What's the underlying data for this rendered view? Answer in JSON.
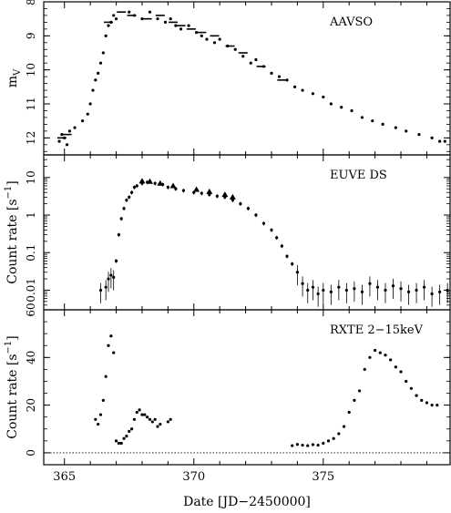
{
  "chart_data": [
    {
      "id": "aavso",
      "type": "scatter",
      "label": "AAVSO",
      "ylabel": "m",
      "ylabel_sub": "V",
      "ylim": [
        8,
        12.5
      ],
      "y_inverted": true,
      "y_ticks": [
        8,
        9,
        10,
        11,
        12
      ],
      "series": [
        {
          "style": "dots",
          "x": [
            364.8,
            364.9,
            365.0,
            365.1,
            365.2,
            365.4,
            365.7,
            365.9,
            366.0,
            366.1,
            366.2,
            366.3,
            366.4,
            366.5,
            366.6,
            366.7,
            366.8,
            366.9,
            367.0,
            367.5,
            367.7,
            368.0,
            368.3,
            368.6,
            368.9,
            369.1,
            369.3,
            369.5,
            369.8,
            370.1,
            370.3,
            370.5,
            370.8,
            371.0,
            371.3,
            371.6,
            371.9,
            372.2,
            372.4,
            372.7,
            373.0,
            373.3,
            373.6,
            373.9,
            374.2,
            374.6,
            375.0,
            375.3,
            375.7,
            376.1,
            376.5,
            376.9,
            377.3,
            377.8,
            378.2,
            378.7,
            379.2,
            379.5,
            379.7
          ],
          "y": [
            12.1,
            11.9,
            12.0,
            12.2,
            11.8,
            11.7,
            11.5,
            11.3,
            11.0,
            10.6,
            10.3,
            10.1,
            9.8,
            9.5,
            9.0,
            8.7,
            8.6,
            8.4,
            8.5,
            8.3,
            8.4,
            8.5,
            8.3,
            8.5,
            8.6,
            8.5,
            8.7,
            8.8,
            8.7,
            8.9,
            9.0,
            9.1,
            9.2,
            9.1,
            9.3,
            9.4,
            9.6,
            9.8,
            9.7,
            9.9,
            10.1,
            10.2,
            10.3,
            10.5,
            10.6,
            10.7,
            10.8,
            11.0,
            11.1,
            11.2,
            11.4,
            11.5,
            11.6,
            11.7,
            11.8,
            11.9,
            12.0,
            12.1,
            12.1
          ]
        },
        {
          "style": "horizontal-bars",
          "x": [
            364.9,
            365.1,
            366.7,
            367.2,
            367.6,
            368.2,
            368.7,
            369.2,
            369.5,
            369.9,
            370.3,
            370.8,
            371.4,
            371.9,
            372.6,
            373.4
          ],
          "y": [
            12.0,
            11.9,
            8.6,
            8.3,
            8.4,
            8.5,
            8.4,
            8.6,
            8.7,
            8.8,
            8.9,
            9.0,
            9.3,
            9.5,
            9.9,
            10.3
          ]
        }
      ]
    },
    {
      "id": "euve",
      "type": "scatter",
      "label": "EUVE DS",
      "ylabel": "Count rate [s",
      "ylabel_sup": "−1",
      "ylabel_end": "]",
      "y_scale": "log",
      "ylim": [
        0.003,
        40
      ],
      "y_tick_labels": [
        "10",
        "1",
        "0.1",
        "0.01"
      ],
      "y_tick_values": [
        10,
        1,
        0.1,
        0.01
      ],
      "series": [
        {
          "style": "errorbars",
          "x": [
            366.4,
            366.6,
            366.7,
            366.8,
            366.9,
            367.0,
            367.1,
            367.2,
            367.3,
            367.4,
            367.5,
            367.6,
            367.7,
            367.8,
            368.0,
            368.2,
            368.5,
            368.8,
            369.0,
            369.3,
            369.6,
            370.0,
            370.3,
            370.6,
            370.9,
            371.2,
            371.5,
            371.8,
            372.1,
            372.4,
            372.7,
            373.0,
            373.2,
            373.4,
            373.6,
            373.8,
            374.0,
            374.2,
            374.4,
            374.6,
            374.8,
            375.0,
            375.3,
            375.6,
            375.9,
            376.2,
            376.5,
            376.8,
            377.1,
            377.4,
            377.7,
            378.0,
            378.3,
            378.6,
            378.9,
            379.2,
            379.5,
            379.8
          ],
          "y": [
            0.01,
            0.012,
            0.02,
            0.025,
            0.022,
            0.06,
            0.3,
            0.8,
            1.5,
            2.5,
            3.0,
            4.0,
            5.5,
            6.0,
            7.0,
            7.5,
            7.0,
            6.5,
            5.5,
            5.0,
            4.5,
            4.0,
            3.8,
            3.5,
            3.2,
            3.0,
            2.5,
            2.0,
            1.5,
            1.0,
            0.6,
            0.4,
            0.25,
            0.15,
            0.08,
            0.05,
            0.03,
            0.015,
            0.01,
            0.012,
            0.008,
            0.01,
            0.009,
            0.012,
            0.01,
            0.011,
            0.009,
            0.015,
            0.012,
            0.01,
            0.013,
            0.011,
            0.009,
            0.01,
            0.012,
            0.008,
            0.009,
            0.01
          ]
        },
        {
          "style": "triangles",
          "x": [
            368.0,
            368.3,
            368.7,
            369.2,
            370.1,
            370.6,
            371.2,
            371.5
          ],
          "y": [
            8.0,
            7.8,
            7.0,
            6.0,
            4.8,
            4.2,
            3.5,
            3.0
          ]
        }
      ]
    },
    {
      "id": "rxte",
      "type": "scatter",
      "label": "RXTE 2−15keV",
      "ylabel": "Count rate [s",
      "ylabel_sup": "−1",
      "ylabel_end": "]",
      "ylim": [
        -5,
        60
      ],
      "y_ticks": [
        0,
        20,
        40,
        60
      ],
      "zero_line": true,
      "series": [
        {
          "style": "dots",
          "x": [
            366.2,
            366.3,
            366.4,
            366.5,
            366.6,
            366.7,
            366.8,
            366.9,
            367.0,
            367.1,
            367.2,
            367.3,
            367.4,
            367.5,
            367.6,
            367.7,
            367.8,
            367.9,
            368.0,
            368.1,
            368.2,
            368.3,
            368.4,
            368.5,
            368.6,
            368.7,
            369.0,
            369.1,
            373.8,
            374.0,
            374.2,
            374.4,
            374.6,
            374.8,
            375.0,
            375.2,
            375.4,
            375.6,
            375.8,
            376.0,
            376.2,
            376.4,
            376.6,
            376.8,
            377.0,
            377.2,
            377.4,
            377.6,
            377.8,
            378.0,
            378.2,
            378.4,
            378.6,
            378.8,
            379.0,
            379.2,
            379.4
          ],
          "y": [
            14,
            12,
            16,
            22,
            32,
            45,
            49,
            42,
            5,
            4,
            4,
            6,
            7,
            9,
            10,
            14,
            17,
            18,
            16,
            16,
            15,
            14,
            13,
            14,
            11,
            12,
            13,
            14,
            3,
            3.5,
            3.2,
            3,
            3.4,
            3.2,
            4,
            5,
            6,
            8,
            11,
            17,
            22,
            26,
            35,
            40,
            43,
            42,
            41,
            39,
            36,
            34,
            30,
            27,
            24,
            22,
            21,
            20,
            20
          ]
        }
      ]
    }
  ],
  "x_axis": {
    "label": "Date [JD−2450000]",
    "xlim": [
      364.2,
      379.9
    ],
    "ticks": [
      365,
      370,
      375
    ],
    "tick_labels": [
      "365",
      "370",
      "375"
    ]
  }
}
